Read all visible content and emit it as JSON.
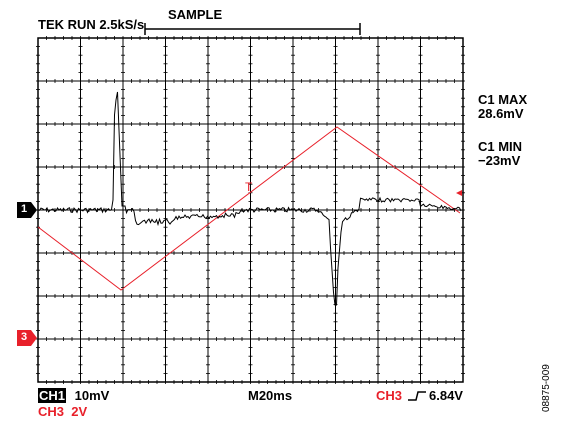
{
  "header": {
    "trigger_status": "TEK RUN 2.5kS/s",
    "acq_mode": "SAMPLE"
  },
  "measurements": {
    "c1_max_label": "C1 MAX",
    "c1_max_value": "28.6mV",
    "c1_min_label": "C1 MIN",
    "c1_min_value": "−23mV"
  },
  "markers": {
    "ch1": "1",
    "ch3": "3",
    "trigger_level": "T"
  },
  "footer": {
    "ch1_label": "CH1",
    "ch1_scale": "10mV",
    "timebase": "M20ms",
    "trigger_source": "CH3",
    "trigger_level": "6.84V",
    "ch3_scale_line": "CH3  2V"
  },
  "figure_id": "08875-009",
  "colors": {
    "grid": "#000000",
    "ch1_trace": "#000000",
    "ch3_trace": "#e8202a"
  }
}
